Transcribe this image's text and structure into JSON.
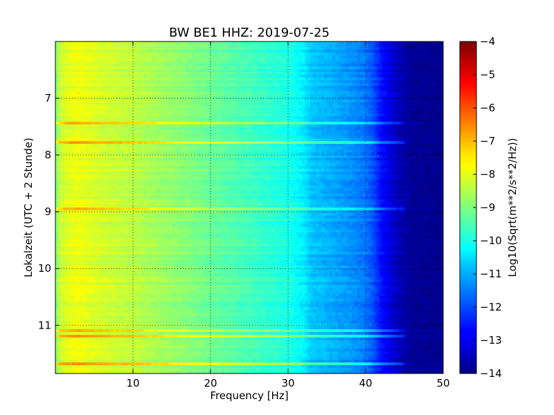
{
  "chart_data": {
    "type": "heatmap",
    "title": "BW BE1 HHZ: 2019-07-25",
    "xlabel": "Frequency [Hz]",
    "ylabel": "Lokalzeit (UTC + 2 Stunde)",
    "colorbar_label": "Log10(Sqrt(m**2/s**2/Hz))",
    "xlim": [
      0,
      50
    ],
    "ylim": [
      11.85,
      6.0
    ],
    "x_ticks": [
      10,
      20,
      30,
      40,
      50
    ],
    "y_ticks": [
      7,
      8,
      9,
      10,
      11
    ],
    "colorbar_range": [
      -14,
      -4
    ],
    "colorbar_ticks": [
      -4,
      -5,
      -6,
      -7,
      -8,
      -9,
      -10,
      -11,
      -12,
      -13,
      -14
    ],
    "colormap": "jet",
    "grid": true,
    "frequency_profile": {
      "x": [
        0,
        0.5,
        1,
        2,
        3,
        5,
        8,
        10,
        15,
        20,
        25,
        28,
        30,
        32,
        33,
        35,
        38,
        40,
        41,
        42,
        43,
        44,
        45,
        46,
        50
      ],
      "level": [
        -9.0,
        -8.4,
        -8.15,
        -8.0,
        -7.9,
        -8.1,
        -8.3,
        -8.4,
        -8.8,
        -9.2,
        -9.6,
        -9.85,
        -10.0,
        -10.4,
        -10.8,
        -11.0,
        -11.3,
        -11.6,
        -12.0,
        -12.6,
        -13.0,
        -13.4,
        -13.6,
        -13.8,
        -13.85
      ]
    }
  }
}
